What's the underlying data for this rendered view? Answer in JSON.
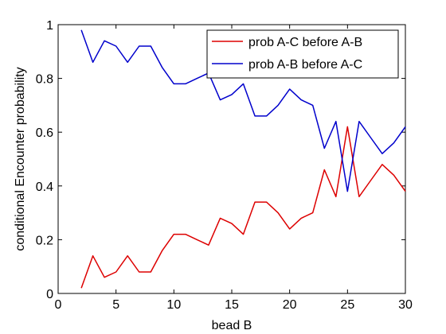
{
  "chart_data": {
    "type": "line",
    "xlabel": "bead B",
    "ylabel": "conditional Encounter probability",
    "xlim": [
      0,
      30
    ],
    "ylim": [
      0,
      1
    ],
    "xticks": [
      0,
      5,
      10,
      15,
      20,
      25,
      30
    ],
    "yticks": [
      0,
      0.2,
      0.4,
      0.6,
      0.8,
      1
    ],
    "ytick_labels": [
      "0",
      "0.2",
      "0.4",
      "0.6",
      "0.8",
      "1"
    ],
    "grid": false,
    "legend_position": "top-right",
    "x": [
      2,
      3,
      4,
      5,
      6,
      7,
      8,
      9,
      10,
      11,
      12,
      13,
      14,
      15,
      16,
      17,
      18,
      19,
      20,
      21,
      22,
      23,
      24,
      25,
      26,
      27,
      28,
      29,
      30
    ],
    "series": [
      {
        "name": "prob A-C before A-B",
        "color": "#dd0000",
        "values": [
          0.02,
          0.14,
          0.06,
          0.08,
          0.14,
          0.08,
          0.08,
          0.16,
          0.22,
          0.22,
          0.2,
          0.18,
          0.28,
          0.26,
          0.22,
          0.34,
          0.34,
          0.3,
          0.24,
          0.28,
          0.3,
          0.46,
          0.36,
          0.62,
          0.36,
          0.42,
          0.48,
          0.44,
          0.38
        ]
      },
      {
        "name": "prob A-B before A-C",
        "color": "#0000cc",
        "values": [
          0.98,
          0.86,
          0.94,
          0.92,
          0.86,
          0.92,
          0.92,
          0.84,
          0.78,
          0.78,
          0.8,
          0.82,
          0.72,
          0.74,
          0.78,
          0.66,
          0.66,
          0.7,
          0.76,
          0.72,
          0.7,
          0.54,
          0.64,
          0.38,
          0.64,
          0.58,
          0.52,
          0.56,
          0.62
        ]
      }
    ]
  }
}
